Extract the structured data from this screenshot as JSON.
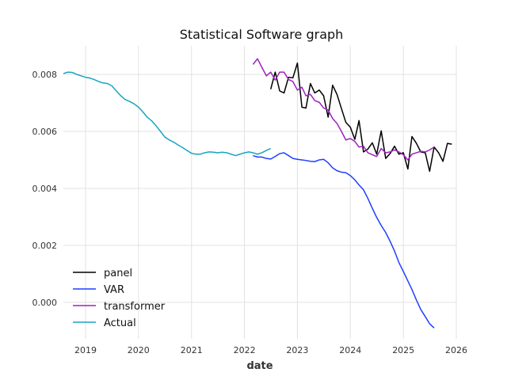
{
  "chart_data": {
    "type": "line",
    "title": "Statistical Software graph",
    "xlabel": "date",
    "ylabel": "",
    "xlim": [
      "2018-08-01",
      "2026-01-01"
    ],
    "ylim": [
      -0.00128,
      0.009
    ],
    "grid": true,
    "legend_position": "bottom-left",
    "x_ticks": [
      "2019",
      "2020",
      "2021",
      "2022",
      "2023",
      "2024",
      "2025",
      "2026"
    ],
    "x_tick_dates": [
      "2019-01-01",
      "2020-01-01",
      "2021-01-01",
      "2022-01-01",
      "2023-01-01",
      "2024-01-01",
      "2025-01-01",
      "2026-01-01"
    ],
    "y_ticks": [
      "0.000",
      "0.002",
      "0.004",
      "0.006",
      "0.008"
    ],
    "y_tick_values": [
      0,
      0.002,
      0.004,
      0.006,
      0.008
    ],
    "series": [
      {
        "name": "panel",
        "color": "#000000",
        "points": [
          [
            "2022-07-01",
            0.00748
          ],
          [
            "2022-08-01",
            0.00808
          ],
          [
            "2022-09-01",
            0.00742
          ],
          [
            "2022-10-01",
            0.00735
          ],
          [
            "2022-11-01",
            0.0079
          ],
          [
            "2022-12-01",
            0.00788
          ],
          [
            "2023-01-01",
            0.0084
          ],
          [
            "2023-02-01",
            0.00685
          ],
          [
            "2023-03-01",
            0.00682
          ],
          [
            "2023-04-01",
            0.00768
          ],
          [
            "2023-05-01",
            0.00735
          ],
          [
            "2023-06-01",
            0.00745
          ],
          [
            "2023-07-01",
            0.00725
          ],
          [
            "2023-08-01",
            0.0065
          ],
          [
            "2023-09-01",
            0.00762
          ],
          [
            "2023-10-01",
            0.0073
          ],
          [
            "2023-11-01",
            0.0068
          ],
          [
            "2023-12-01",
            0.00632
          ],
          [
            "2024-01-01",
            0.00615
          ],
          [
            "2024-02-01",
            0.00572
          ],
          [
            "2024-03-01",
            0.00638
          ],
          [
            "2024-04-01",
            0.00528
          ],
          [
            "2024-05-01",
            0.00538
          ],
          [
            "2024-06-01",
            0.0056
          ],
          [
            "2024-07-01",
            0.0052
          ],
          [
            "2024-08-01",
            0.00602
          ],
          [
            "2024-09-01",
            0.00505
          ],
          [
            "2024-10-01",
            0.00522
          ],
          [
            "2024-11-01",
            0.00548
          ],
          [
            "2024-12-01",
            0.0052
          ],
          [
            "2025-01-01",
            0.00525
          ],
          [
            "2025-02-01",
            0.00468
          ],
          [
            "2025-03-01",
            0.00582
          ],
          [
            "2025-04-01",
            0.00558
          ],
          [
            "2025-05-01",
            0.00528
          ],
          [
            "2025-06-01",
            0.00525
          ],
          [
            "2025-07-01",
            0.0046
          ],
          [
            "2025-08-01",
            0.00545
          ],
          [
            "2025-09-01",
            0.00525
          ],
          [
            "2025-10-01",
            0.00495
          ],
          [
            "2025-11-01",
            0.00558
          ],
          [
            "2025-12-01",
            0.00555
          ]
        ]
      },
      {
        "name": "VAR",
        "color": "#1f3fff",
        "points": [
          [
            "2022-03-01",
            0.00515
          ],
          [
            "2022-04-01",
            0.0051
          ],
          [
            "2022-05-01",
            0.0051
          ],
          [
            "2022-06-01",
            0.00505
          ],
          [
            "2022-07-01",
            0.00503
          ],
          [
            "2022-08-01",
            0.00512
          ],
          [
            "2022-09-01",
            0.00522
          ],
          [
            "2022-10-01",
            0.00525
          ],
          [
            "2022-11-01",
            0.00515
          ],
          [
            "2022-12-01",
            0.00505
          ],
          [
            "2023-01-01",
            0.00502
          ],
          [
            "2023-02-01",
            0.005
          ],
          [
            "2023-03-01",
            0.00498
          ],
          [
            "2023-04-01",
            0.00495
          ],
          [
            "2023-05-01",
            0.00494
          ],
          [
            "2023-06-01",
            0.005
          ],
          [
            "2023-07-01",
            0.00502
          ],
          [
            "2023-08-01",
            0.0049
          ],
          [
            "2023-09-01",
            0.00472
          ],
          [
            "2023-10-01",
            0.00462
          ],
          [
            "2023-11-01",
            0.00457
          ],
          [
            "2023-12-01",
            0.00455
          ],
          [
            "2024-01-01",
            0.00445
          ],
          [
            "2024-02-01",
            0.0043
          ],
          [
            "2024-03-01",
            0.00412
          ],
          [
            "2024-04-01",
            0.00395
          ],
          [
            "2024-05-01",
            0.00365
          ],
          [
            "2024-06-01",
            0.0033
          ],
          [
            "2024-07-01",
            0.00298
          ],
          [
            "2024-08-01",
            0.0027
          ],
          [
            "2024-09-01",
            0.00245
          ],
          [
            "2024-10-01",
            0.00215
          ],
          [
            "2024-11-01",
            0.0018
          ],
          [
            "2024-12-01",
            0.0014
          ],
          [
            "2025-01-01",
            0.00108
          ],
          [
            "2025-02-01",
            0.00075
          ],
          [
            "2025-03-01",
            0.00045
          ],
          [
            "2025-04-01",
            8e-05
          ],
          [
            "2025-05-01",
            -0.00025
          ],
          [
            "2025-06-01",
            -0.0005
          ],
          [
            "2025-07-01",
            -0.00075
          ],
          [
            "2025-08-01",
            -0.0009
          ]
        ]
      },
      {
        "name": "transformer",
        "color": "#a020c0",
        "points": [
          [
            "2022-03-01",
            0.00835
          ],
          [
            "2022-04-01",
            0.00855
          ],
          [
            "2022-05-01",
            0.00825
          ],
          [
            "2022-06-01",
            0.00795
          ],
          [
            "2022-07-01",
            0.00808
          ],
          [
            "2022-08-01",
            0.0078
          ],
          [
            "2022-09-01",
            0.00808
          ],
          [
            "2022-10-01",
            0.00808
          ],
          [
            "2022-11-01",
            0.00782
          ],
          [
            "2022-12-01",
            0.00775
          ],
          [
            "2023-01-01",
            0.00745
          ],
          [
            "2023-02-01",
            0.00755
          ],
          [
            "2023-03-01",
            0.00725
          ],
          [
            "2023-04-01",
            0.0073
          ],
          [
            "2023-05-01",
            0.00708
          ],
          [
            "2023-06-01",
            0.00702
          ],
          [
            "2023-07-01",
            0.00682
          ],
          [
            "2023-08-01",
            0.00675
          ],
          [
            "2023-09-01",
            0.00645
          ],
          [
            "2023-10-01",
            0.00628
          ],
          [
            "2023-11-01",
            0.006
          ],
          [
            "2023-12-01",
            0.0057
          ],
          [
            "2024-01-01",
            0.00575
          ],
          [
            "2024-02-01",
            0.00565
          ],
          [
            "2024-03-01",
            0.00545
          ],
          [
            "2024-04-01",
            0.00548
          ],
          [
            "2024-05-01",
            0.00525
          ],
          [
            "2024-06-01",
            0.00518
          ],
          [
            "2024-07-01",
            0.00512
          ],
          [
            "2024-08-01",
            0.0054
          ],
          [
            "2024-09-01",
            0.00525
          ],
          [
            "2024-10-01",
            0.00528
          ],
          [
            "2024-11-01",
            0.00535
          ],
          [
            "2024-12-01",
            0.00528
          ],
          [
            "2025-01-01",
            0.00518
          ],
          [
            "2025-02-01",
            0.005
          ],
          [
            "2025-03-01",
            0.0052
          ],
          [
            "2025-04-01",
            0.00525
          ],
          [
            "2025-05-01",
            0.0053
          ],
          [
            "2025-06-01",
            0.00528
          ],
          [
            "2025-07-01",
            0.00535
          ],
          [
            "2025-08-01",
            0.00545
          ]
        ]
      },
      {
        "name": "Actual",
        "color": "#17a5c0",
        "points": [
          [
            "2018-08-01",
            0.00803
          ],
          [
            "2018-09-01",
            0.00808
          ],
          [
            "2018-10-01",
            0.00807
          ],
          [
            "2018-11-01",
            0.008
          ],
          [
            "2018-12-01",
            0.00795
          ],
          [
            "2019-01-01",
            0.0079
          ],
          [
            "2019-02-01",
            0.00787
          ],
          [
            "2019-03-01",
            0.00782
          ],
          [
            "2019-04-01",
            0.00775
          ],
          [
            "2019-05-01",
            0.0077
          ],
          [
            "2019-06-01",
            0.00768
          ],
          [
            "2019-07-01",
            0.0076
          ],
          [
            "2019-08-01",
            0.00742
          ],
          [
            "2019-09-01",
            0.00725
          ],
          [
            "2019-10-01",
            0.00712
          ],
          [
            "2019-11-01",
            0.00705
          ],
          [
            "2019-12-01",
            0.00697
          ],
          [
            "2020-01-01",
            0.00685
          ],
          [
            "2020-02-01",
            0.00668
          ],
          [
            "2020-03-01",
            0.0065
          ],
          [
            "2020-04-01",
            0.00637
          ],
          [
            "2020-05-01",
            0.0062
          ],
          [
            "2020-06-01",
            0.006
          ],
          [
            "2020-07-01",
            0.0058
          ],
          [
            "2020-08-01",
            0.0057
          ],
          [
            "2020-09-01",
            0.00562
          ],
          [
            "2020-10-01",
            0.00552
          ],
          [
            "2020-11-01",
            0.00543
          ],
          [
            "2020-12-01",
            0.00533
          ],
          [
            "2021-01-01",
            0.00523
          ],
          [
            "2021-02-01",
            0.0052
          ],
          [
            "2021-03-01",
            0.0052
          ],
          [
            "2021-04-01",
            0.00525
          ],
          [
            "2021-05-01",
            0.00528
          ],
          [
            "2021-06-01",
            0.00527
          ],
          [
            "2021-07-01",
            0.00525
          ],
          [
            "2021-08-01",
            0.00527
          ],
          [
            "2021-09-01",
            0.00525
          ],
          [
            "2021-10-01",
            0.0052
          ],
          [
            "2021-11-01",
            0.00515
          ],
          [
            "2021-12-01",
            0.0052
          ],
          [
            "2022-01-01",
            0.00525
          ],
          [
            "2022-02-01",
            0.00528
          ],
          [
            "2022-03-01",
            0.00525
          ],
          [
            "2022-04-01",
            0.0052
          ],
          [
            "2022-05-01",
            0.00525
          ],
          [
            "2022-06-01",
            0.00533
          ],
          [
            "2022-07-01",
            0.0054
          ]
        ]
      }
    ]
  }
}
